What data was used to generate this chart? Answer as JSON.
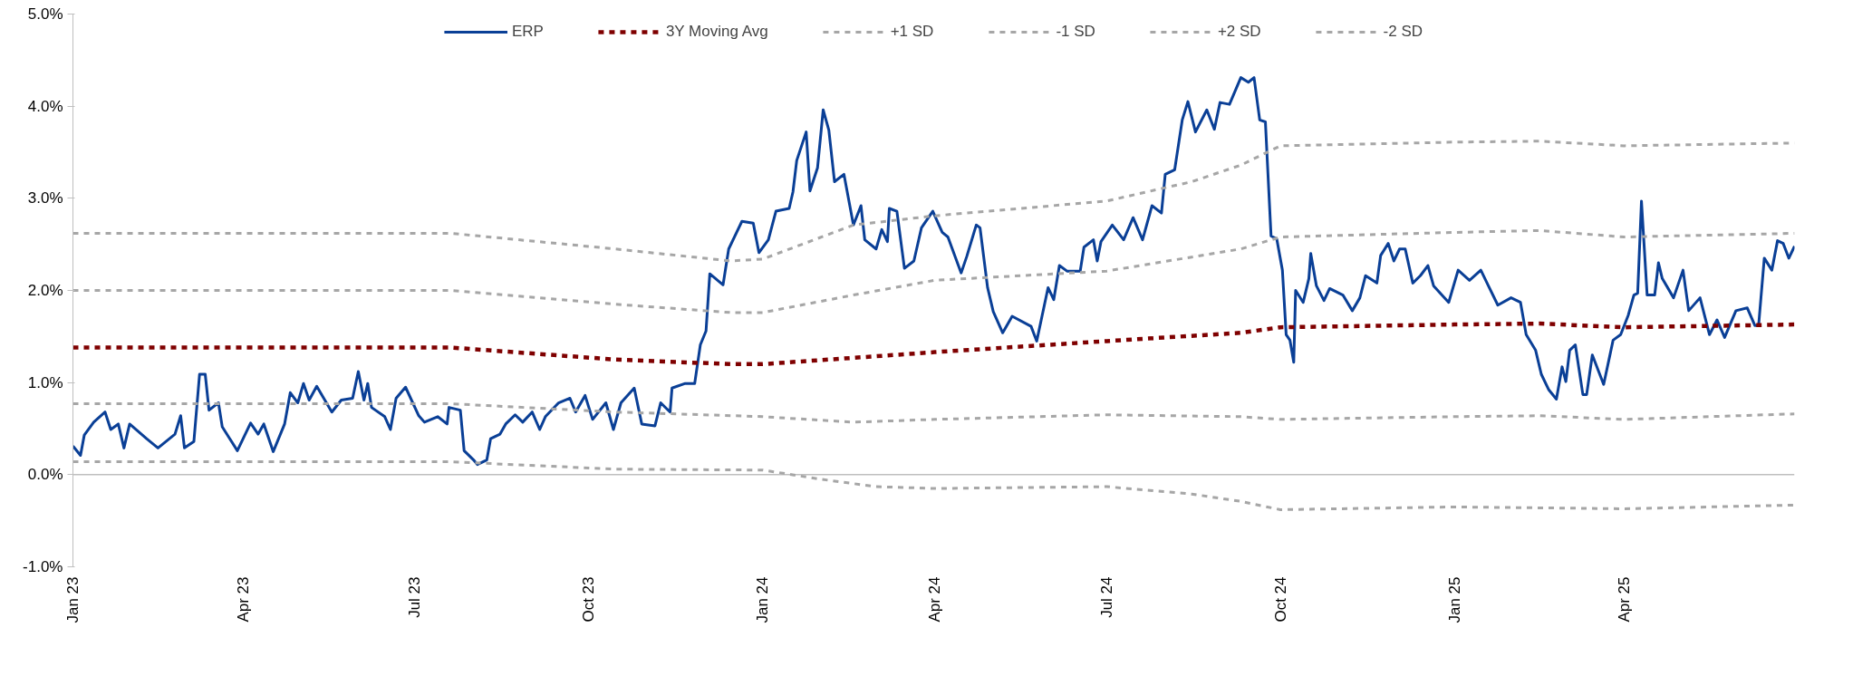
{
  "chart_data": {
    "type": "line",
    "legend": "top",
    "grid": false,
    "marker": "none",
    "ylim": [
      -1,
      5
    ],
    "yticks": [
      {
        "value": -1,
        "label": "-1.0%"
      },
      {
        "value": 0,
        "label": "0.0%"
      },
      {
        "value": 1,
        "label": "1.0%"
      },
      {
        "value": 2,
        "label": "2.0%"
      },
      {
        "value": 3,
        "label": "3.0%"
      },
      {
        "value": 4,
        "label": "4.0%"
      },
      {
        "value": 5,
        "label": "5.0%"
      }
    ],
    "xlim": [
      "2023-01-01",
      "2025-06-30"
    ],
    "xticks": [
      {
        "value": "2023-01-01",
        "label": "Jan 23"
      },
      {
        "value": "2023-04-01",
        "label": "Apr 23"
      },
      {
        "value": "2023-07-01",
        "label": "Jul 23"
      },
      {
        "value": "2023-10-01",
        "label": "Oct 23"
      },
      {
        "value": "2024-01-01",
        "label": "Jan 24"
      },
      {
        "value": "2024-04-01",
        "label": "Apr 24"
      },
      {
        "value": "2024-07-01",
        "label": "Jul 24"
      },
      {
        "value": "2024-10-01",
        "label": "Oct 24"
      },
      {
        "value": "2025-01-01",
        "label": "Jan 25"
      },
      {
        "value": "2025-04-01",
        "label": "Apr 25"
      }
    ],
    "ref_lines": [
      {
        "axis": "y",
        "value": 0,
        "label": null,
        "color": "#bfbfbf",
        "line_style": "solid"
      }
    ],
    "series": [
      {
        "name": "ERP",
        "color": "#0a3f96",
        "line_style": "solid",
        "x": [
          "2023-01-01",
          "2023-01-05",
          "2023-01-07",
          "2023-01-12",
          "2023-01-18",
          "2023-01-21",
          "2023-01-25",
          "2023-01-28",
          "2023-01-31",
          "2023-02-09",
          "2023-02-15",
          "2023-02-24",
          "2023-02-27",
          "2023-03-01",
          "2023-03-06",
          "2023-03-09",
          "2023-03-12",
          "2023-03-14",
          "2023-03-19",
          "2023-03-21",
          "2023-03-29",
          "2023-04-05",
          "2023-04-09",
          "2023-04-12",
          "2023-04-17",
          "2023-04-23",
          "2023-04-26",
          "2023-04-30",
          "2023-05-03",
          "2023-05-06",
          "2023-05-10",
          "2023-05-18",
          "2023-05-23",
          "2023-05-29",
          "2023-06-01",
          "2023-06-04",
          "2023-06-06",
          "2023-06-08",
          "2023-06-15",
          "2023-06-18",
          "2023-06-21",
          "2023-06-26",
          "2023-07-03",
          "2023-07-06",
          "2023-07-13",
          "2023-07-18",
          "2023-07-19",
          "2023-07-25",
          "2023-07-27",
          "2023-08-01",
          "2023-08-03",
          "2023-08-08",
          "2023-08-10",
          "2023-08-15",
          "2023-08-18",
          "2023-08-23",
          "2023-08-27",
          "2023-09-01",
          "2023-09-05",
          "2023-09-08",
          "2023-09-15",
          "2023-09-21",
          "2023-09-24",
          "2023-09-29",
          "2023-10-03",
          "2023-10-10",
          "2023-10-14",
          "2023-10-18",
          "2023-10-25",
          "2023-10-29",
          "2023-11-05",
          "2023-11-08",
          "2023-11-13",
          "2023-11-14",
          "2023-11-21",
          "2023-11-26",
          "2023-11-29",
          "2023-12-02",
          "2023-12-04",
          "2023-12-11",
          "2023-12-14",
          "2023-12-21",
          "2023-12-27",
          "2023-12-30",
          "2024-01-04",
          "2024-01-08",
          "2024-01-15",
          "2024-01-17",
          "2024-01-19",
          "2024-01-24",
          "2024-01-26",
          "2024-01-30",
          "2024-02-02",
          "2024-02-05",
          "2024-02-08",
          "2024-02-13",
          "2024-02-18",
          "2024-02-22",
          "2024-02-24",
          "2024-03-01",
          "2024-03-04",
          "2024-03-07",
          "2024-03-08",
          "2024-03-12",
          "2024-03-16",
          "2024-03-21",
          "2024-03-25",
          "2024-03-31",
          "2024-04-05",
          "2024-04-08",
          "2024-04-15",
          "2024-04-18",
          "2024-04-23",
          "2024-04-25",
          "2024-04-29",
          "2024-05-02",
          "2024-05-07",
          "2024-05-12",
          "2024-05-22",
          "2024-05-25",
          "2024-05-31",
          "2024-06-03",
          "2024-06-06",
          "2024-06-10",
          "2024-06-17",
          "2024-06-19",
          "2024-06-24",
          "2024-06-26",
          "2024-06-28",
          "2024-07-04",
          "2024-07-10",
          "2024-07-15",
          "2024-07-20",
          "2024-07-25",
          "2024-07-30",
          "2024-08-01",
          "2024-08-06",
          "2024-08-10",
          "2024-08-13",
          "2024-08-17",
          "2024-08-23",
          "2024-08-27",
          "2024-08-30",
          "2024-09-04",
          "2024-09-10",
          "2024-09-14",
          "2024-09-17",
          "2024-09-20",
          "2024-09-23",
          "2024-09-26",
          "2024-09-29",
          "2024-10-02",
          "2024-10-04",
          "2024-10-06",
          "2024-10-08",
          "2024-10-09",
          "2024-10-13",
          "2024-10-16",
          "2024-10-17",
          "2024-10-20",
          "2024-10-24",
          "2024-10-27",
          "2024-11-03",
          "2024-11-08",
          "2024-11-12",
          "2024-11-15",
          "2024-11-21",
          "2024-11-23",
          "2024-11-27",
          "2024-11-30",
          "2024-12-03",
          "2024-12-06",
          "2024-12-10",
          "2024-12-14",
          "2024-12-18",
          "2024-12-21",
          "2024-12-29",
          "2025-01-03",
          "2025-01-09",
          "2025-01-15",
          "2025-01-19",
          "2025-01-24",
          "2025-01-31",
          "2025-02-05",
          "2025-02-08",
          "2025-02-13",
          "2025-02-16",
          "2025-02-20",
          "2025-02-24",
          "2025-02-27",
          "2025-03-01",
          "2025-03-03",
          "2025-03-06",
          "2025-03-10",
          "2025-03-12",
          "2025-03-15",
          "2025-03-21",
          "2025-03-26",
          "2025-03-30",
          "2025-04-03",
          "2025-04-06",
          "2025-04-08",
          "2025-04-10",
          "2025-04-13",
          "2025-04-17",
          "2025-04-19",
          "2025-04-21",
          "2025-04-27",
          "2025-05-02",
          "2025-05-05",
          "2025-05-11",
          "2025-05-16",
          "2025-05-20",
          "2025-05-24",
          "2025-05-30",
          "2025-06-05",
          "2025-06-09",
          "2025-06-11",
          "2025-06-14",
          "2025-06-18",
          "2025-06-21",
          "2025-06-24",
          "2025-06-27",
          "2025-06-30"
        ],
        "values": [
          0.31,
          0.21,
          0.43,
          0.57,
          0.68,
          0.49,
          0.55,
          0.29,
          0.55,
          0.39,
          0.29,
          0.44,
          0.64,
          0.29,
          0.36,
          1.09,
          1.09,
          0.7,
          0.78,
          0.52,
          0.26,
          0.56,
          0.44,
          0.55,
          0.25,
          0.55,
          0.89,
          0.78,
          0.99,
          0.81,
          0.96,
          0.68,
          0.81,
          0.83,
          1.12,
          0.81,
          0.99,
          0.73,
          0.63,
          0.49,
          0.83,
          0.95,
          0.64,
          0.57,
          0.63,
          0.55,
          0.73,
          0.7,
          0.26,
          0.16,
          0.11,
          0.16,
          0.39,
          0.44,
          0.55,
          0.65,
          0.57,
          0.68,
          0.49,
          0.63,
          0.78,
          0.83,
          0.68,
          0.86,
          0.6,
          0.78,
          0.49,
          0.78,
          0.94,
          0.55,
          0.53,
          0.78,
          0.68,
          0.94,
          0.99,
          0.99,
          1.41,
          1.56,
          2.18,
          2.06,
          2.45,
          2.75,
          2.73,
          2.41,
          2.55,
          2.86,
          2.89,
          3.07,
          3.41,
          3.72,
          3.08,
          3.33,
          3.96,
          3.74,
          3.18,
          3.26,
          2.71,
          2.92,
          2.55,
          2.45,
          2.66,
          2.53,
          2.89,
          2.86,
          2.24,
          2.32,
          2.68,
          2.86,
          2.63,
          2.58,
          2.19,
          2.37,
          2.71,
          2.68,
          2.03,
          1.77,
          1.54,
          1.72,
          1.61,
          1.45,
          2.03,
          1.9,
          2.27,
          2.21,
          2.21,
          2.47,
          2.55,
          2.32,
          2.53,
          2.71,
          2.55,
          2.79,
          2.55,
          2.92,
          2.84,
          3.26,
          3.31,
          3.85,
          4.05,
          3.72,
          3.96,
          3.75,
          4.04,
          4.02,
          4.31,
          4.26,
          4.31,
          3.85,
          3.83,
          2.59,
          2.56,
          2.22,
          1.52,
          1.46,
          1.22,
          2.0,
          1.87,
          2.13,
          2.4,
          2.05,
          1.89,
          2.02,
          1.95,
          1.78,
          1.92,
          2.16,
          2.08,
          2.38,
          2.51,
          2.32,
          2.45,
          2.45,
          2.08,
          2.16,
          2.27,
          2.05,
          1.87,
          2.22,
          2.11,
          2.22,
          2.05,
          1.84,
          1.92,
          1.87,
          1.52,
          1.35,
          1.09,
          0.92,
          0.82,
          1.17,
          1.01,
          1.35,
          1.41,
          0.87,
          0.87,
          1.3,
          0.98,
          1.46,
          1.52,
          1.73,
          1.95,
          1.97,
          2.97,
          1.95,
          1.95,
          2.3,
          2.13,
          1.92,
          2.22,
          1.78,
          1.92,
          1.52,
          1.68,
          1.49,
          1.78,
          1.81,
          1.62,
          1.62,
          2.35,
          2.22,
          2.54,
          2.51,
          2.35,
          2.48
        ]
      },
      {
        "name": "3Y Moving Avg",
        "color": "#7f0000",
        "line_style": "dashed",
        "x": [
          "2023-01-01",
          "2023-07-20",
          "2023-10-15",
          "2023-12-15",
          "2024-01-01",
          "2024-04-01",
          "2024-07-01",
          "2024-09-10",
          "2024-10-01",
          "2025-01-01",
          "2025-02-15",
          "2025-04-01",
          "2025-06-30"
        ],
        "values": [
          1.38,
          1.38,
          1.25,
          1.2,
          1.2,
          1.33,
          1.45,
          1.54,
          1.6,
          1.63,
          1.64,
          1.6,
          1.63
        ]
      },
      {
        "name": "+1 SD",
        "color": "#a6a6a6",
        "line_style": "dashed",
        "x": [
          "2023-01-01",
          "2023-07-20",
          "2023-10-15",
          "2023-12-15",
          "2024-01-01",
          "2024-02-18",
          "2024-04-01",
          "2024-07-01",
          "2024-09-10",
          "2024-10-01",
          "2025-01-01",
          "2025-02-15",
          "2025-04-01",
          "2025-06-30"
        ],
        "values": [
          2.0,
          2.0,
          1.85,
          1.76,
          1.76,
          1.95,
          2.11,
          2.21,
          2.45,
          2.58,
          2.63,
          2.65,
          2.58,
          2.62
        ]
      },
      {
        "name": "-1 SD",
        "color": "#a6a6a6",
        "line_style": "dashed",
        "x": [
          "2023-01-01",
          "2023-07-20",
          "2023-10-15",
          "2024-01-01",
          "2024-02-18",
          "2024-04-01",
          "2024-07-01",
          "2024-09-10",
          "2024-10-01",
          "2025-01-01",
          "2025-02-15",
          "2025-04-01",
          "2025-06-30"
        ],
        "values": [
          0.77,
          0.77,
          0.68,
          0.63,
          0.57,
          0.6,
          0.65,
          0.63,
          0.6,
          0.63,
          0.64,
          0.6,
          0.66
        ]
      },
      {
        "name": "+2 SD",
        "color": "#a6a6a6",
        "line_style": "dashed",
        "x": [
          "2023-01-01",
          "2023-07-20",
          "2023-10-15",
          "2023-12-15",
          "2024-01-01",
          "2024-02-18",
          "2024-04-01",
          "2024-07-01",
          "2024-08-15",
          "2024-09-10",
          "2024-10-01",
          "2025-01-01",
          "2025-02-15",
          "2025-04-01",
          "2025-06-30"
        ],
        "values": [
          2.62,
          2.62,
          2.45,
          2.32,
          2.34,
          2.71,
          2.81,
          2.97,
          3.18,
          3.36,
          3.57,
          3.61,
          3.62,
          3.57,
          3.6
        ]
      },
      {
        "name": "-2 SD",
        "color": "#a6a6a6",
        "line_style": "dashed",
        "x": [
          "2023-01-01",
          "2023-07-20",
          "2023-10-15",
          "2024-01-01",
          "2024-02-01",
          "2024-03-01",
          "2024-04-01",
          "2024-07-01",
          "2024-08-15",
          "2024-09-10",
          "2024-10-01",
          "2025-01-01",
          "2025-04-01",
          "2025-06-30"
        ],
        "values": [
          0.14,
          0.14,
          0.06,
          0.05,
          -0.05,
          -0.13,
          -0.15,
          -0.13,
          -0.21,
          -0.29,
          -0.38,
          -0.35,
          -0.37,
          -0.33
        ]
      }
    ]
  }
}
